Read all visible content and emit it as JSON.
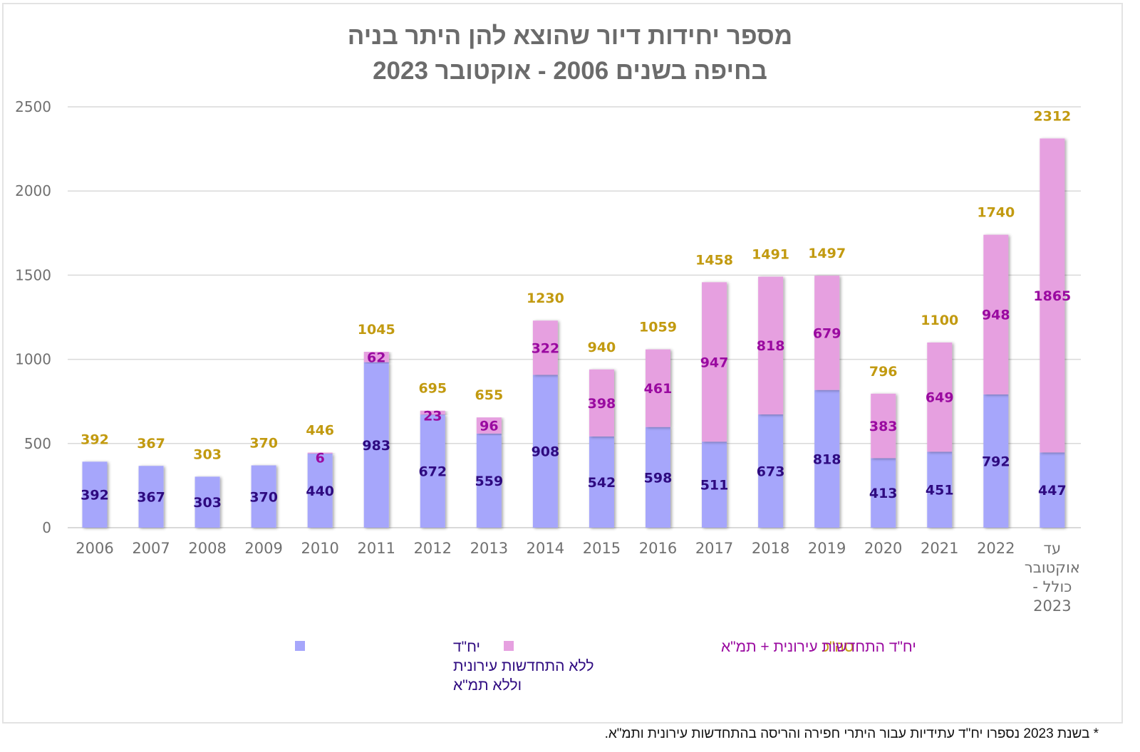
{
  "chart_data": {
    "type": "bar",
    "stacked": true,
    "title_lines": [
      "מספר יחידות דיור שהוצא להן היתר בניה",
      "בחיפה בשנים 2006 - אוקטובר 2023"
    ],
    "xlabel": "",
    "ylabel": "",
    "ylim": [
      0,
      2500
    ],
    "yticks": [
      0,
      500,
      1000,
      1500,
      2000,
      2500
    ],
    "grid": true,
    "legend_position": "bottom",
    "categories": [
      [
        "2006"
      ],
      [
        "2007"
      ],
      [
        "2008"
      ],
      [
        "2009"
      ],
      [
        "2010"
      ],
      [
        "2011"
      ],
      [
        "2012"
      ],
      [
        "2013"
      ],
      [
        "2014"
      ],
      [
        "2015"
      ],
      [
        "2016"
      ],
      [
        "2017"
      ],
      [
        "2018"
      ],
      [
        "2019"
      ],
      [
        "2020"
      ],
      [
        "2021"
      ],
      [
        "2022"
      ],
      [
        "עד",
        "אוקטובר",
        "כולל -",
        "2023"
      ]
    ],
    "series": [
      {
        "name": "יח\"ד ללא התחדשות עירונית וללא תמ\"א",
        "legend_lines": [
          "יח\"ד",
          "ללא התחדשות עירונית",
          "וללא תמ\"א"
        ],
        "color": "#a6a6fb",
        "label_color": "#2e0a80",
        "values": [
          392,
          367,
          303,
          370,
          440,
          983,
          672,
          559,
          908,
          542,
          598,
          511,
          673,
          818,
          413,
          451,
          792,
          447
        ]
      },
      {
        "name": "יח\"ד התחדשות עירונית + תמ\"א",
        "legend_lines": [
          "יח\"ד התחדשות עירונית + תמ\"א"
        ],
        "color": "#e6a0e0",
        "label_color": "#9a0aa0",
        "values": [
          null,
          null,
          null,
          null,
          6,
          62,
          23,
          96,
          322,
          398,
          461,
          947,
          818,
          679,
          383,
          649,
          948,
          1865
        ]
      },
      {
        "name": "סה\"כ",
        "legend_lines": [
          "סה\"כ"
        ],
        "color": "#c29a10",
        "label_color": "#c29a10",
        "values": [
          392,
          367,
          303,
          370,
          446,
          1045,
          695,
          655,
          1230,
          940,
          1059,
          1458,
          1491,
          1497,
          796,
          1100,
          1740,
          2312
        ]
      }
    ],
    "gridline_color": "#d9d9d9",
    "footnote": "* בשנת 2023 נספרו יח\"ד עתידיות עבור היתרי חפירה והריסה בהתחדשות עירונית ותמ\"א."
  }
}
